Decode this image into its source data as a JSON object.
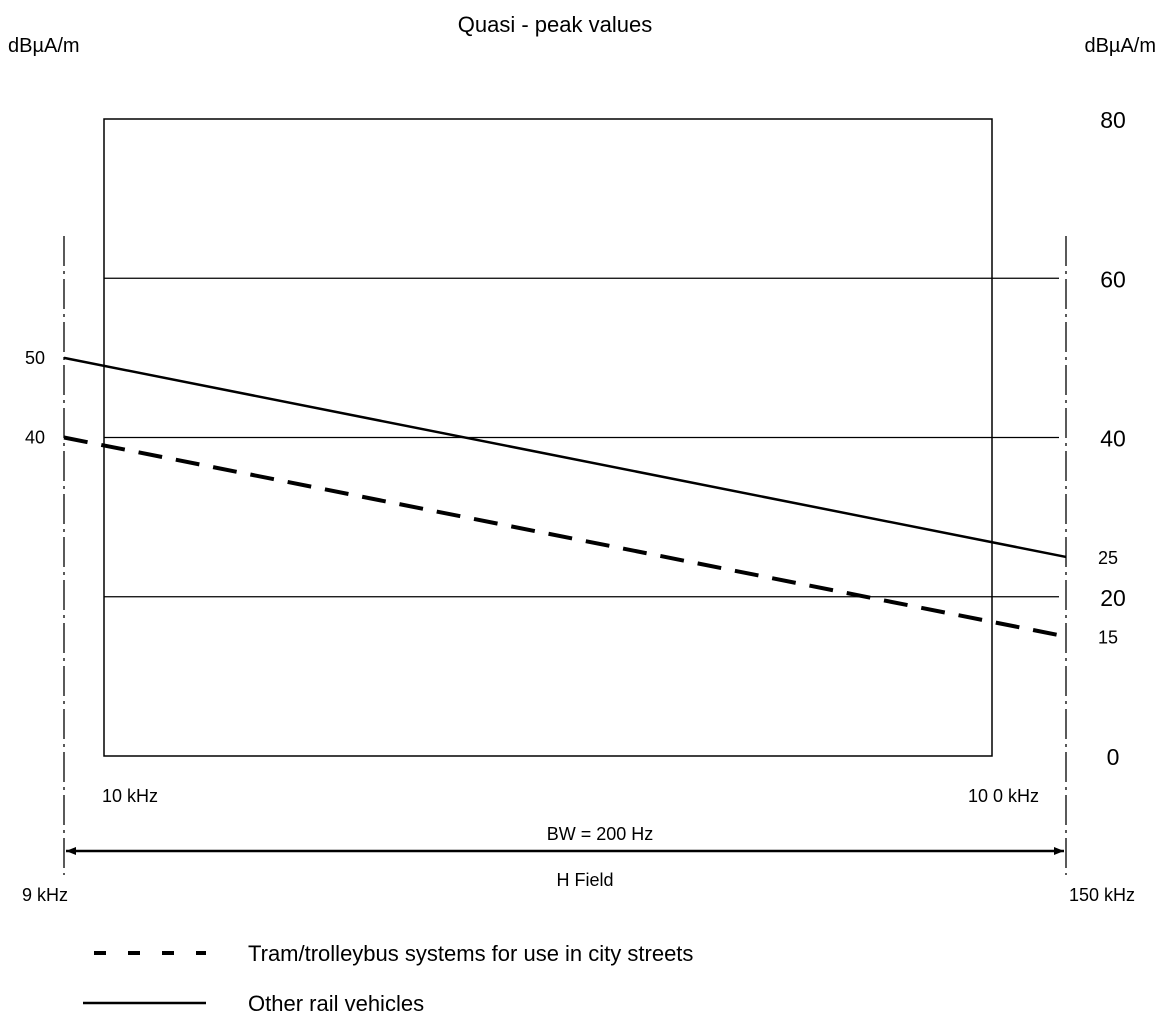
{
  "chart_data": {
    "type": "line",
    "title": "Quasi - peak values",
    "ylabel_left": "dBµA/m",
    "ylabel_right": "dBµA/m",
    "ylim": [
      0,
      80
    ],
    "right_ticks": [
      {
        "value": 80,
        "label": "80"
      },
      {
        "value": 60,
        "label": "60"
      },
      {
        "value": 40,
        "label": "40"
      },
      {
        "value": 20,
        "label": "20"
      },
      {
        "value": 0,
        "label": "0"
      }
    ],
    "gridlines": [
      60,
      40,
      20
    ],
    "left_labels": [
      {
        "value": 50,
        "label": "50"
      },
      {
        "value": 40,
        "label": "40"
      }
    ],
    "end_labels": [
      {
        "value": 25,
        "label": "25"
      },
      {
        "value": 15,
        "label": "15"
      }
    ],
    "box_freq_labels": {
      "start": "10 kHz",
      "end": "10 0 kHz"
    },
    "range": {
      "start_label": "9 kHz",
      "end_label": "150  kHz",
      "bw_label": "BW = 200 Hz",
      "field_label": "H Field"
    },
    "series": [
      {
        "name": "Other rail vehicles",
        "style": "solid",
        "start": 50,
        "end": 25
      },
      {
        "name": "Tram/trolleybus systems for use in city streets",
        "style": "dashed",
        "start": 40,
        "end": 15
      }
    ],
    "legend_order": [
      1,
      0
    ],
    "grid": true
  }
}
